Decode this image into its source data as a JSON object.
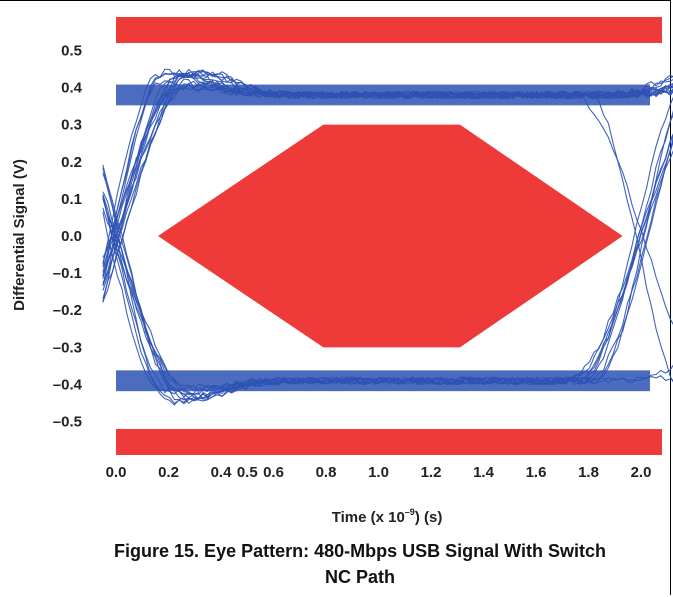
{
  "chart_data": {
    "type": "eye-diagram",
    "xlabel_prefix": "Time (x 10",
    "xlabel_exp": "–9",
    "xlabel_suffix": ") (s)",
    "ylabel": "Differential Signal (V)",
    "xlim": [
      0.0,
      2.08
    ],
    "ylim": [
      -0.59,
      0.59
    ],
    "x_ticks": [
      "0.0",
      "0.2",
      "0.4",
      "0.5",
      "0.6",
      "0.8",
      "1.0",
      "1.2",
      "1.4",
      "1.6",
      "1.8",
      "2.0"
    ],
    "x_tick_values": [
      0.0,
      0.2,
      0.4,
      0.5,
      0.6,
      0.8,
      1.0,
      1.2,
      1.4,
      1.6,
      1.8,
      2.0
    ],
    "y_ticks": [
      "0.5",
      "0.4",
      "0.3",
      "0.2",
      "0.1",
      "0.0",
      "–0.1",
      "–0.2",
      "–0.3",
      "–0.4",
      "–0.5"
    ],
    "y_tick_values": [
      0.5,
      0.4,
      0.3,
      0.2,
      0.1,
      0.0,
      -0.1,
      -0.2,
      -0.3,
      -0.4,
      -0.5
    ],
    "mask": {
      "upper_band": {
        "y_from": 0.52,
        "y_to": 0.59
      },
      "lower_band": {
        "y_from": -0.59,
        "y_to": -0.52
      },
      "center_polygon": [
        [
          0.16,
          0.0
        ],
        [
          0.79,
          0.3
        ],
        [
          1.31,
          0.3
        ],
        [
          1.93,
          0.0
        ],
        [
          1.31,
          -0.3
        ],
        [
          0.79,
          -0.3
        ]
      ],
      "color": "#ee3a38"
    },
    "signal": {
      "high_level": 0.38,
      "low_level": -0.39,
      "crossings": [
        0.0,
        2.0
      ],
      "color": "#2d52b4"
    }
  },
  "caption": {
    "line1": "Figure 15. Eye Pattern: 480-Mbps USB Signal With Switch",
    "line2": "NC Path"
  }
}
